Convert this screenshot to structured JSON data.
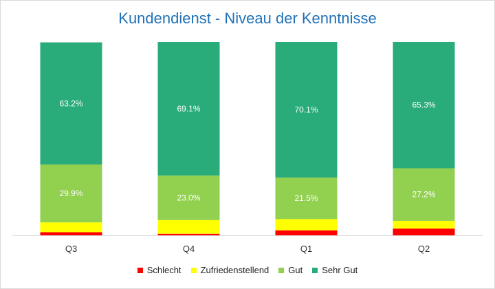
{
  "chart_data": {
    "type": "bar",
    "stacked": true,
    "percent": true,
    "title": "Kundendienst - Niveau der Kenntnisse",
    "categories": [
      "Q3",
      "Q4",
      "Q1",
      "Q2"
    ],
    "series": [
      {
        "name": "Schlecht",
        "color": "#ff0000",
        "values": [
          1.6,
          0.8,
          2.6,
          3.5
        ],
        "labels": [
          "",
          "",
          "",
          ""
        ]
      },
      {
        "name": "Zufriedenstellend",
        "color": "#ffff00",
        "values": [
          5.1,
          7.1,
          5.8,
          4.0
        ],
        "labels": [
          "",
          "",
          "",
          ""
        ]
      },
      {
        "name": "Gut",
        "color": "#92d050",
        "values": [
          29.9,
          23.0,
          21.5,
          27.2
        ],
        "labels": [
          "29.9%",
          "23.0%",
          "21.5%",
          "27.2%"
        ]
      },
      {
        "name": "Sehr Gut",
        "color": "#2aab7a",
        "values": [
          63.2,
          69.1,
          70.1,
          65.3
        ],
        "labels": [
          "63.2%",
          "69.1%",
          "70.1%",
          "65.3%"
        ]
      }
    ],
    "ylim": [
      0,
      100
    ],
    "grid": false,
    "legend": "bottom"
  }
}
